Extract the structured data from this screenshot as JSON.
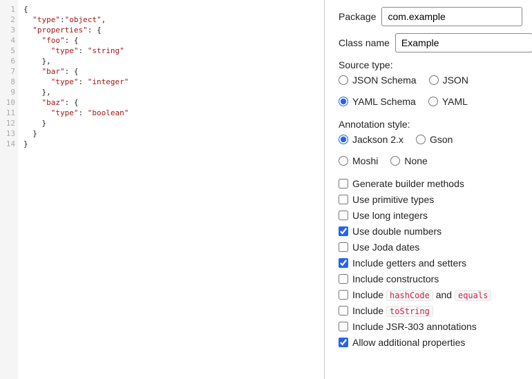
{
  "editor": {
    "lineCount": 14,
    "lines": [
      {
        "indent": 0,
        "parts": [
          {
            "t": "{",
            "c": "pun"
          }
        ]
      },
      {
        "indent": 1,
        "parts": [
          {
            "t": "\"type\"",
            "c": "kw"
          },
          {
            "t": ":",
            "c": "pun"
          },
          {
            "t": "\"object\"",
            "c": "str"
          },
          {
            "t": ",",
            "c": "pun"
          }
        ]
      },
      {
        "indent": 1,
        "parts": [
          {
            "t": "\"properties\"",
            "c": "kw"
          },
          {
            "t": ": {",
            "c": "pun"
          }
        ]
      },
      {
        "indent": 2,
        "parts": [
          {
            "t": "\"foo\"",
            "c": "kw"
          },
          {
            "t": ": {",
            "c": "pun"
          }
        ]
      },
      {
        "indent": 3,
        "parts": [
          {
            "t": "\"type\"",
            "c": "kw"
          },
          {
            "t": ": ",
            "c": "pun"
          },
          {
            "t": "\"string\"",
            "c": "str"
          }
        ]
      },
      {
        "indent": 2,
        "parts": [
          {
            "t": "},",
            "c": "pun"
          }
        ]
      },
      {
        "indent": 2,
        "parts": [
          {
            "t": "\"bar\"",
            "c": "kw"
          },
          {
            "t": ": {",
            "c": "pun"
          }
        ]
      },
      {
        "indent": 3,
        "parts": [
          {
            "t": "\"type\"",
            "c": "kw"
          },
          {
            "t": ": ",
            "c": "pun"
          },
          {
            "t": "\"integer\"",
            "c": "str"
          }
        ]
      },
      {
        "indent": 2,
        "parts": [
          {
            "t": "},",
            "c": "pun"
          }
        ]
      },
      {
        "indent": 2,
        "parts": [
          {
            "t": "\"baz\"",
            "c": "kw"
          },
          {
            "t": ": {",
            "c": "pun"
          }
        ]
      },
      {
        "indent": 3,
        "parts": [
          {
            "t": "\"type\"",
            "c": "kw"
          },
          {
            "t": ": ",
            "c": "pun"
          },
          {
            "t": "\"boolean\"",
            "c": "str"
          }
        ]
      },
      {
        "indent": 2,
        "parts": [
          {
            "t": "}",
            "c": "pun"
          }
        ]
      },
      {
        "indent": 1,
        "parts": [
          {
            "t": "}",
            "c": "pun"
          }
        ]
      },
      {
        "indent": 0,
        "parts": [
          {
            "t": "}",
            "c": "pun"
          }
        ]
      }
    ],
    "colors": {
      "keyword": "#a31515",
      "string": "#a31515",
      "punctuation": "#222222",
      "gutter_bg": "#f5f5f5",
      "gutter_fg": "#aaaaaa"
    }
  },
  "form": {
    "package": {
      "label": "Package",
      "value": "com.example"
    },
    "className": {
      "label": "Class name",
      "value": "Example"
    },
    "sourceType": {
      "label": "Source type:",
      "options": [
        {
          "id": "json-schema",
          "label": "JSON Schema",
          "checked": false
        },
        {
          "id": "json",
          "label": "JSON",
          "checked": false
        },
        {
          "id": "yaml-schema",
          "label": "YAML Schema",
          "checked": true
        },
        {
          "id": "yaml",
          "label": "YAML",
          "checked": false
        }
      ]
    },
    "annotationStyle": {
      "label": "Annotation style:",
      "options": [
        {
          "id": "jackson2",
          "label": "Jackson 2.x",
          "checked": true
        },
        {
          "id": "gson",
          "label": "Gson",
          "checked": false
        },
        {
          "id": "moshi",
          "label": "Moshi",
          "checked": false
        },
        {
          "id": "none",
          "label": "None",
          "checked": false
        }
      ]
    },
    "checkboxes": [
      {
        "id": "builders",
        "label": "Generate builder methods",
        "checked": false
      },
      {
        "id": "primitives",
        "label": "Use primitive types",
        "checked": false
      },
      {
        "id": "long",
        "label": "Use long integers",
        "checked": false
      },
      {
        "id": "double",
        "label": "Use double numbers",
        "checked": true
      },
      {
        "id": "joda",
        "label": "Use Joda dates",
        "checked": false
      },
      {
        "id": "getset",
        "label": "Include getters and setters",
        "checked": true
      },
      {
        "id": "constructors",
        "label": "Include constructors",
        "checked": false
      },
      {
        "id": "hashcode",
        "label_parts": [
          "Include ",
          {
            "chip": "hashCode"
          },
          " and ",
          {
            "chip": "equals"
          }
        ],
        "checked": false
      },
      {
        "id": "tostring",
        "label_parts": [
          "Include ",
          {
            "chip": "toString"
          }
        ],
        "checked": false
      },
      {
        "id": "jsr303",
        "label": "Include JSR-303 annotations",
        "checked": false
      },
      {
        "id": "additional",
        "label": "Allow additional properties",
        "checked": true
      }
    ]
  },
  "colors": {
    "accent": "#2563eb",
    "chip_fg": "#c7254e",
    "chip_bg": "#f7f7f7",
    "border": "#cccccc"
  }
}
